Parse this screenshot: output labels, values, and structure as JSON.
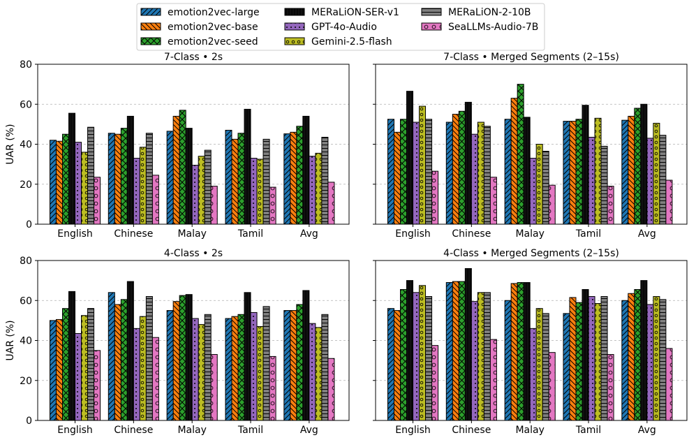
{
  "chart_data": [
    {
      "type": "bar",
      "title": "7-Class • 2s",
      "ylabel": "UAR (%)",
      "ylim": [
        0,
        80
      ],
      "yticks": [
        0,
        20,
        40,
        60,
        80
      ],
      "categories": [
        "English",
        "Chinese",
        "Malay",
        "Tamil",
        "Avg"
      ],
      "series": [
        {
          "name": "emotion2vec-large",
          "values": [
            42,
            45.5,
            46.5,
            47,
            45.2
          ]
        },
        {
          "name": "emotion2vec-base",
          "values": [
            41.5,
            45,
            54,
            42.5,
            46
          ]
        },
        {
          "name": "emotion2vec-seed",
          "values": [
            45,
            48,
            57,
            45.5,
            49
          ]
        },
        {
          "name": "MERaLiON-SER-v1",
          "values": [
            55.5,
            54,
            48,
            57.5,
            54
          ]
        },
        {
          "name": "GPT-4o-Audio",
          "values": [
            41,
            33,
            29.5,
            33,
            34
          ]
        },
        {
          "name": "Gemini-2.5-flash",
          "values": [
            36,
            38.5,
            34,
            32.5,
            35.5
          ]
        },
        {
          "name": "MERaLiON-2-10B",
          "values": [
            48.5,
            45.5,
            37,
            42.5,
            43.5
          ]
        },
        {
          "name": "SeaLLMs-Audio-7B",
          "values": [
            23.5,
            24.5,
            19,
            18.5,
            21
          ]
        }
      ],
      "grid": "y"
    },
    {
      "type": "bar",
      "title": "7-Class • Merged Segments (2–15s)",
      "ylabel": "",
      "ylim": [
        0,
        80
      ],
      "yticks": [
        0,
        20,
        40,
        60,
        80
      ],
      "categories": [
        "English",
        "Chinese",
        "Malay",
        "Tamil",
        "Avg"
      ],
      "series": [
        {
          "name": "emotion2vec-large",
          "values": [
            52.5,
            51,
            52.5,
            51.5,
            52
          ]
        },
        {
          "name": "emotion2vec-base",
          "values": [
            46,
            55,
            63,
            51.5,
            54
          ]
        },
        {
          "name": "emotion2vec-seed",
          "values": [
            52.5,
            56.5,
            70,
            52.5,
            58
          ]
        },
        {
          "name": "MERaLiON-SER-v1",
          "values": [
            66.5,
            61,
            53.5,
            59.5,
            60
          ]
        },
        {
          "name": "GPT-4o-Audio",
          "values": [
            51,
            45,
            33,
            43.5,
            43
          ]
        },
        {
          "name": "Gemini-2.5-flash",
          "values": [
            59,
            51,
            40,
            53,
            50.5
          ]
        },
        {
          "name": "MERaLiON-2-10B",
          "values": [
            52.5,
            49,
            36.5,
            39,
            44.5
          ]
        },
        {
          "name": "SeaLLMs-Audio-7B",
          "values": [
            26.5,
            23.5,
            19.5,
            19,
            22
          ]
        }
      ],
      "grid": "y"
    },
    {
      "type": "bar",
      "title": "4-Class • 2s",
      "ylabel": "UAR (%)",
      "ylim": [
        0,
        80
      ],
      "yticks": [
        0,
        20,
        40,
        60,
        80
      ],
      "categories": [
        "English",
        "Chinese",
        "Malay",
        "Tamil",
        "Avg"
      ],
      "series": [
        {
          "name": "emotion2vec-large",
          "values": [
            50,
            64,
            55,
            51,
            55
          ]
        },
        {
          "name": "emotion2vec-base",
          "values": [
            50.5,
            58,
            59.5,
            52,
            55
          ]
        },
        {
          "name": "emotion2vec-seed",
          "values": [
            56,
            60.5,
            62.5,
            53,
            58
          ]
        },
        {
          "name": "MERaLiON-SER-v1",
          "values": [
            64.5,
            69.5,
            63,
            64,
            65
          ]
        },
        {
          "name": "GPT-4o-Audio",
          "values": [
            43.5,
            46,
            51,
            54,
            48.5
          ]
        },
        {
          "name": "Gemini-2.5-flash",
          "values": [
            52.5,
            52,
            48,
            47,
            46.5
          ]
        },
        {
          "name": "MERaLiON-2-10B",
          "values": [
            56,
            62,
            53,
            57,
            53
          ]
        },
        {
          "name": "SeaLLMs-Audio-7B",
          "values": [
            35,
            41.5,
            33,
            32,
            31
          ]
        }
      ],
      "grid": "y"
    },
    {
      "type": "bar",
      "title": "4-Class • Merged Segments (2–15s)",
      "ylabel": "",
      "ylim": [
        0,
        80
      ],
      "yticks": [
        0,
        20,
        40,
        60,
        80
      ],
      "categories": [
        "English",
        "Chinese",
        "Malay",
        "Tamil",
        "Avg"
      ],
      "series": [
        {
          "name": "emotion2vec-large",
          "values": [
            56,
            69,
            60,
            53.5,
            60
          ]
        },
        {
          "name": "emotion2vec-base",
          "values": [
            55,
            69.5,
            68.5,
            61.5,
            63.5
          ]
        },
        {
          "name": "emotion2vec-seed",
          "values": [
            65.5,
            69.5,
            69,
            59,
            65.5
          ]
        },
        {
          "name": "MERaLiON-SER-v1",
          "values": [
            70,
            76,
            69,
            65.5,
            70
          ]
        },
        {
          "name": "GPT-4o-Audio",
          "values": [
            64,
            59.5,
            46,
            62,
            58
          ]
        },
        {
          "name": "Gemini-2.5-flash",
          "values": [
            67.5,
            64,
            56,
            58.5,
            62
          ]
        },
        {
          "name": "MERaLiON-2-10B",
          "values": [
            62,
            64,
            53.5,
            62,
            60.5
          ]
        },
        {
          "name": "SeaLLMs-Audio-7B",
          "values": [
            37.5,
            40.5,
            34,
            33,
            36
          ]
        }
      ],
      "grid": "y"
    }
  ],
  "legend": {
    "placement": "top-center",
    "items": [
      {
        "name": "emotion2vec-large",
        "color": "#1f77b4",
        "pattern": "diagonal-hatch"
      },
      {
        "name": "emotion2vec-base",
        "color": "#ff7f0e",
        "pattern": "back-diagonal-hatch"
      },
      {
        "name": "emotion2vec-seed",
        "color": "#2ca02c",
        "pattern": "cross-hatch"
      },
      {
        "name": "MERaLiON-SER-v1",
        "color": "#111111",
        "pattern": "vertical-lines"
      },
      {
        "name": "GPT-4o-Audio",
        "color": "#9467bd",
        "pattern": "dots"
      },
      {
        "name": "Gemini-2.5-flash",
        "color": "#bcbd22",
        "pattern": "circles"
      },
      {
        "name": "MERaLiON-2-10B",
        "color": "#7f7f7f",
        "pattern": "horizontal-lines"
      },
      {
        "name": "SeaLLMs-Audio-7B",
        "color": "#e377c2",
        "pattern": "rings"
      }
    ]
  }
}
